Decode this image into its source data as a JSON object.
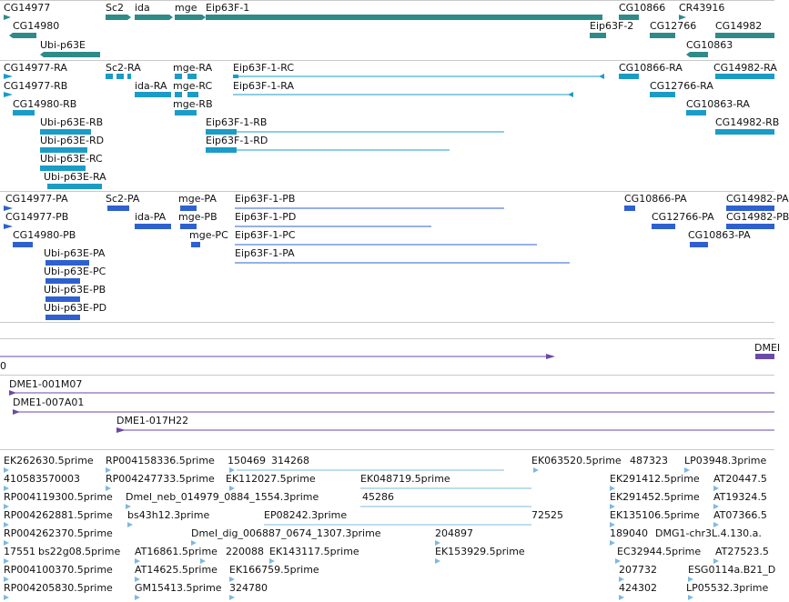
{
  "colors": {
    "gene_track": "#2f8a8a",
    "transcript_track": "#1a9cc7",
    "protein_track": "#2e60d0",
    "clone_track": "#6a4aa8",
    "est_track": "#7fb8df",
    "panel_border": "#c9c9c9"
  },
  "tracks": {
    "genes": {
      "labels": [
        "CG14977",
        "Sc2",
        "ida",
        "mge",
        "Eip63F-1",
        "CG10866",
        "CR43916",
        "CG14980",
        "Eip63F-2",
        "CG12766",
        "CG14982",
        "Ubi-p63E",
        "CG10863"
      ]
    },
    "transcripts": {
      "labels": [
        "CG14977-RA",
        "Sc2-RA",
        "mge-RA",
        "Eip63F-1-RC",
        "CG10866-RA",
        "CG14982-RA",
        "CG14977-RB",
        "ida-RA",
        "mge-RC",
        "Eip63F-1-RA",
        "CG12766-RA",
        "CG14980-RB",
        "mge-RB",
        "CG10863-RA",
        "Ubi-p63E-RB",
        "Eip63F-1-RB",
        "CG14982-RB",
        "Ubi-p63E-RD",
        "Eip63F-1-RD",
        "Ubi-p63E-RC",
        "Ubi-p63E-RA"
      ]
    },
    "proteins": {
      "labels": [
        "CG14977-PA",
        "Sc2-PA",
        "mge-PA",
        "Eip63F-1-PB",
        "CG10866-PA",
        "CG14982-PA",
        "CG14977-PB",
        "ida-PA",
        "mge-PB",
        "Eip63F-1-PD",
        "CG12766-PA",
        "CG14982-PB",
        "CG14980-PB",
        "mge-PC",
        "Eip63F-1-PC",
        "CG10863-PA",
        "Ubi-p63E-PA",
        "Eip63F-1-PA",
        "Ubi-p63E-PC",
        "Ubi-p63E-PB",
        "Ubi-p63E-PD"
      ]
    },
    "clones": {
      "labels": [
        "0",
        "DMEI",
        "DME1-001M07",
        "DME1-007A01",
        "DME1-017H22"
      ]
    },
    "ests": {
      "labels": [
        "EK262630.5prime",
        "RP004158336.5prime",
        "150469",
        "314268",
        "EK063520.5prime",
        "487323",
        "LP03948.3prime",
        "410583570003",
        "RP004247733.5prime",
        "EK112027.5prime",
        "EK048719.5prime",
        "EK291412.5prime",
        "AT20447.5",
        "RP004119300.5prime",
        "Dmel_neb_014979_0884_1554.3prime",
        "45286",
        "EK291452.5prime",
        "AT19324.5",
        "RP004262881.5prime",
        "bs43h12.3prime",
        "EP08242.3prime",
        "72525",
        "EK135106.5prime",
        "AT07366.5",
        "RP004262370.5prime",
        "Dmel_dig_006887_0674_1307.3prime",
        "204897",
        "189040",
        "DMG1-chr3L.4.130.a.",
        "17551",
        "bs22g08.5prime",
        "AT16861.5prime",
        "220088",
        "EK143117.5prime",
        "EK153929.5prime",
        "EC32944.5prime",
        "AT27523.5",
        "RP004100370.5prime",
        "AT14625.5prime",
        "EK166759.5prime",
        "207732",
        "ESG0114a.B21_D",
        "RP004205830.5prime",
        "GM15413.5prime",
        "324780",
        "424302",
        "LP05532.3prime"
      ]
    }
  }
}
